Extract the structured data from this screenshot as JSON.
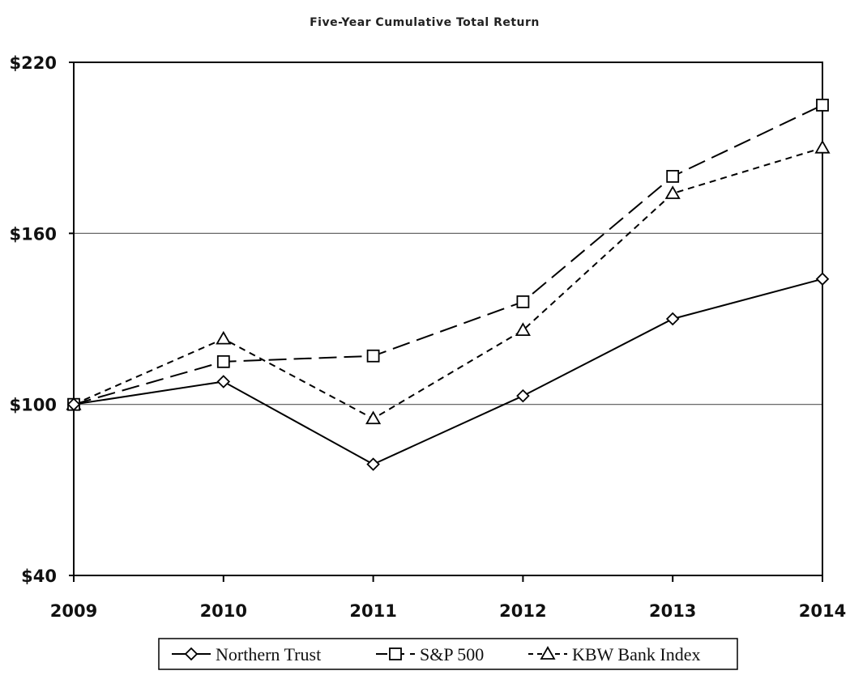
{
  "chart_data": {
    "type": "line",
    "title": "Five-Year Cumulative Total Return",
    "x": [
      "2009",
      "2010",
      "2011",
      "2012",
      "2013",
      "2014"
    ],
    "ylim": [
      40,
      220
    ],
    "yticks": [
      {
        "value": 40,
        "label": "$40"
      },
      {
        "value": 100,
        "label": "$100"
      },
      {
        "value": 160,
        "label": "$160"
      },
      {
        "value": 220,
        "label": "$220"
      }
    ],
    "grid": {
      "horizontal": true,
      "values": [
        100,
        160
      ]
    },
    "legend": {
      "placement": "bottom-center"
    },
    "series": [
      {
        "name": "Northern Trust",
        "marker": "diamond",
        "dash": "solid",
        "values": [
          100,
          108,
          79,
          103,
          130,
          144
        ]
      },
      {
        "name": "S&P 500",
        "marker": "square",
        "dash": "long-dash",
        "values": [
          100,
          115,
          117,
          136,
          180,
          205
        ]
      },
      {
        "name": "KBW Bank Index",
        "marker": "triangle",
        "dash": "short-dash",
        "values": [
          100,
          123,
          95,
          126,
          174,
          190
        ]
      }
    ]
  }
}
